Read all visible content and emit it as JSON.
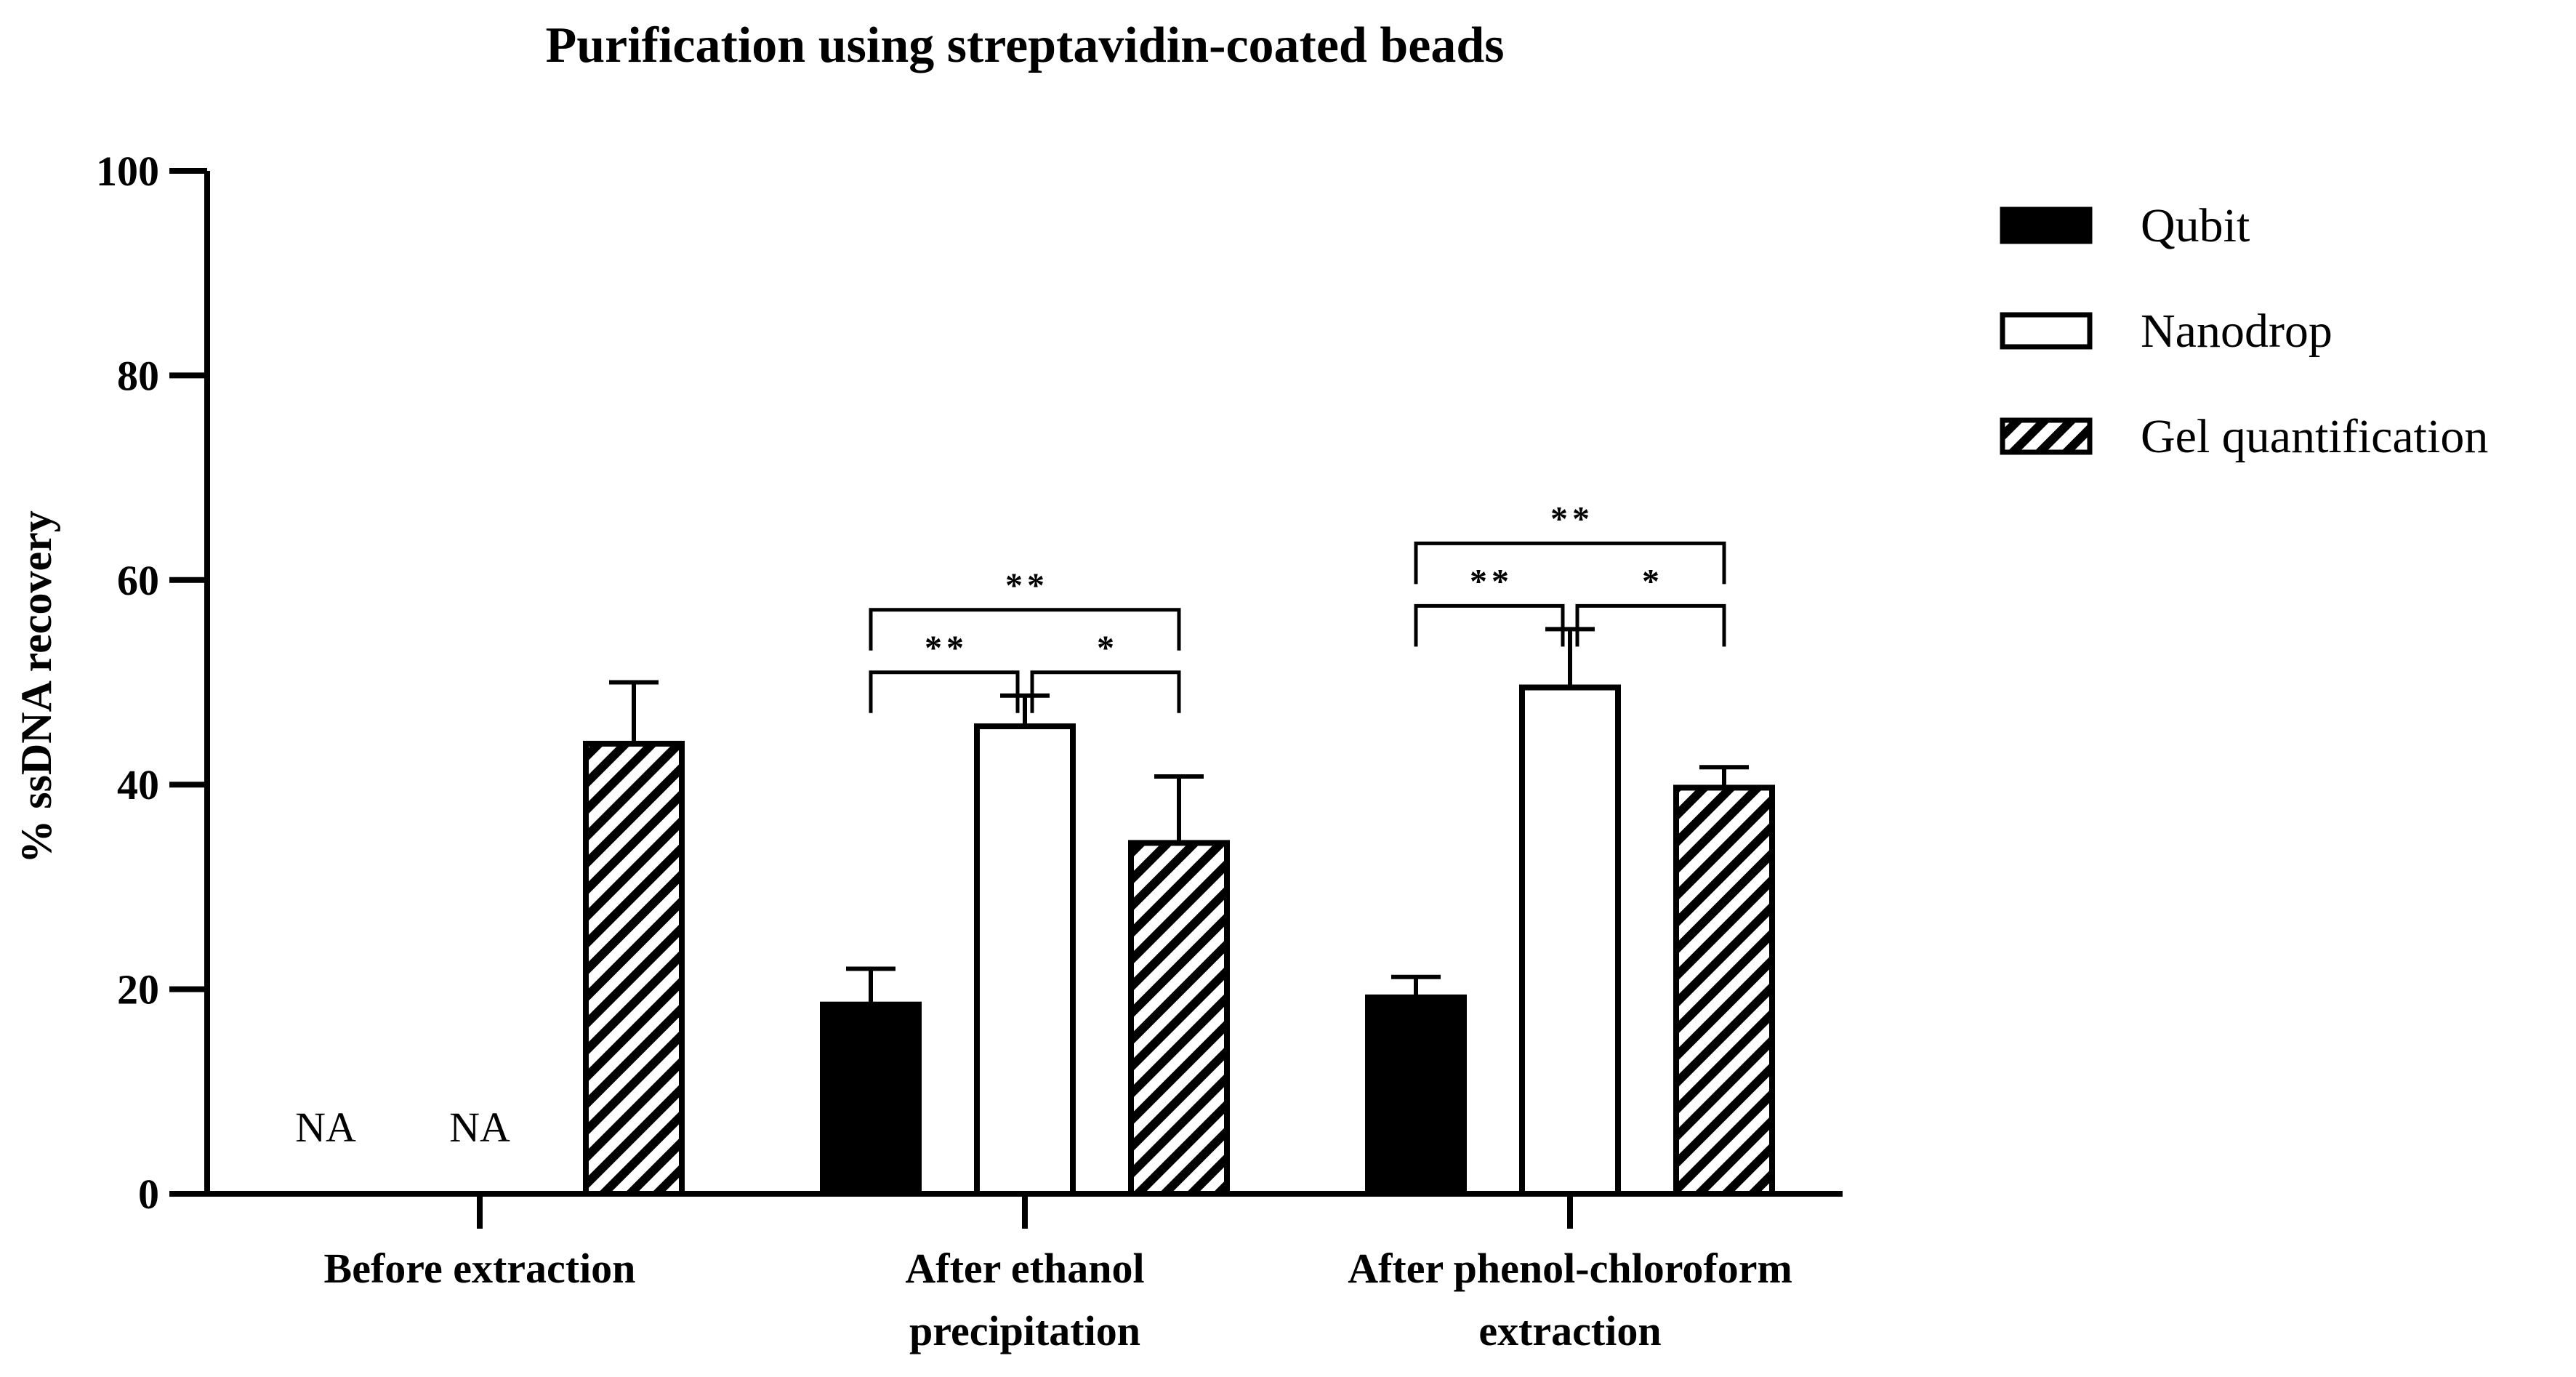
{
  "chart_data": {
    "type": "bar",
    "title": "Purification using streptavidin-coated beads",
    "ylabel": "% ssDNA recovery",
    "xlabel": "",
    "ylim": [
      0,
      100
    ],
    "yticks": [
      0,
      20,
      40,
      60,
      80,
      100
    ],
    "categories": [
      {
        "lines": [
          "Before extraction"
        ]
      },
      {
        "lines": [
          "After ethanol",
          "precipitation"
        ]
      },
      {
        "lines": [
          "After phenol-chloroform",
          "extraction"
        ]
      }
    ],
    "series": [
      {
        "name": "Qubit",
        "style": "solid",
        "values": [
          null,
          18.5,
          19.2
        ],
        "errors": [
          null,
          3.5,
          2.0
        ]
      },
      {
        "name": "Nanodrop",
        "style": "open",
        "values": [
          null,
          45.7,
          49.5
        ],
        "errors": [
          null,
          3.0,
          5.7
        ]
      },
      {
        "name": "Gel quantification",
        "style": "hatched",
        "values": [
          44.0,
          34.3,
          39.7
        ],
        "errors": [
          6.0,
          6.5,
          2.0
        ]
      }
    ],
    "missing_label": "NA",
    "significance": [
      {
        "category": 1,
        "pairs": [
          {
            "from": 0,
            "to": 1,
            "label": "**",
            "level": 1
          },
          {
            "from": 1,
            "to": 2,
            "label": "*",
            "level": 1
          },
          {
            "from": 0,
            "to": 2,
            "label": "**",
            "level": 2
          }
        ]
      },
      {
        "category": 2,
        "pairs": [
          {
            "from": 0,
            "to": 1,
            "label": "**",
            "level": 1
          },
          {
            "from": 1,
            "to": 2,
            "label": "*",
            "level": 1
          },
          {
            "from": 0,
            "to": 2,
            "label": "**",
            "level": 2
          }
        ]
      }
    ],
    "legend_position": "top-right",
    "grid": false,
    "colors": {
      "bar": "#000000",
      "background": "#ffffff"
    }
  }
}
